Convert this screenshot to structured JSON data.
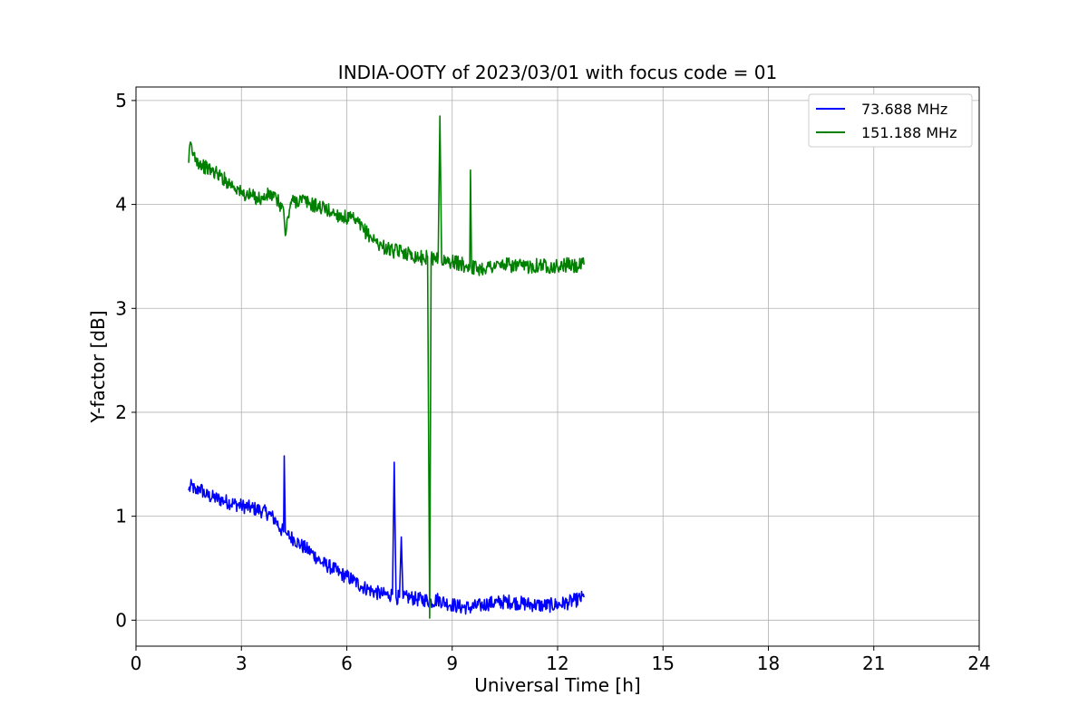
{
  "chart_data": {
    "type": "line",
    "title": "INDIA-OOTY of 2023/03/01 with focus code = 01",
    "xlabel": "Universal Time [h]",
    "ylabel": "Y-factor [dB]",
    "xlim": [
      0,
      24
    ],
    "ylim": [
      -0.25,
      5.13
    ],
    "xticks": [
      0,
      3,
      6,
      9,
      12,
      15,
      18,
      21,
      24
    ],
    "xtick_labels": [
      "0",
      "3",
      "6",
      "9",
      "12",
      "15",
      "18",
      "21",
      "24"
    ],
    "yticks": [
      0,
      1,
      2,
      3,
      4,
      5
    ],
    "ytick_labels": [
      "0",
      "1",
      "2",
      "3",
      "4",
      "5"
    ],
    "grid": true,
    "legend_position": "top-right",
    "series": [
      {
        "name": "73.688 MHz",
        "color": "#0000ff",
        "x": [
          1.5,
          1.6,
          1.7,
          1.8,
          2.0,
          2.2,
          2.5,
          2.8,
          3.0,
          3.3,
          3.6,
          3.8,
          4.0,
          4.1,
          4.2,
          4.22,
          4.25,
          4.3,
          4.5,
          4.7,
          5.0,
          5.3,
          5.6,
          5.8,
          6.0,
          6.2,
          6.4,
          6.6,
          6.8,
          7.0,
          7.2,
          7.3,
          7.35,
          7.4,
          7.5,
          7.55,
          7.6,
          7.8,
          8.0,
          8.2,
          8.4,
          8.6,
          8.8,
          9.0,
          9.2,
          9.5,
          9.8,
          10.0,
          10.3,
          10.6,
          11.0,
          11.3,
          11.6,
          12.0,
          12.3,
          12.5,
          12.75
        ],
        "y": [
          1.25,
          1.3,
          1.22,
          1.28,
          1.2,
          1.18,
          1.15,
          1.12,
          1.1,
          1.08,
          1.05,
          1.02,
          0.95,
          0.88,
          0.85,
          1.58,
          0.85,
          0.82,
          0.78,
          0.72,
          0.65,
          0.55,
          0.5,
          0.45,
          0.42,
          0.38,
          0.33,
          0.3,
          0.27,
          0.25,
          0.24,
          0.25,
          1.52,
          0.22,
          0.22,
          0.8,
          0.21,
          0.22,
          0.2,
          0.2,
          0.18,
          0.2,
          0.17,
          0.15,
          0.13,
          0.12,
          0.14,
          0.16,
          0.17,
          0.18,
          0.16,
          0.15,
          0.14,
          0.15,
          0.17,
          0.19,
          0.22
        ]
      },
      {
        "name": "151.188 MHz",
        "color": "#008000",
        "x": [
          1.5,
          1.55,
          1.6,
          1.7,
          1.8,
          2.0,
          2.3,
          2.6,
          2.9,
          3.0,
          3.3,
          3.6,
          3.8,
          4.0,
          4.2,
          4.25,
          4.4,
          4.7,
          5.0,
          5.3,
          5.6,
          5.9,
          6.2,
          6.5,
          6.8,
          7.0,
          7.3,
          7.6,
          7.8,
          8.0,
          8.2,
          8.3,
          8.36,
          8.4,
          8.6,
          8.65,
          8.7,
          9.0,
          9.3,
          9.5,
          9.52,
          9.55,
          9.8,
          10.0,
          10.5,
          11.0,
          11.5,
          12.0,
          12.3,
          12.5,
          12.75
        ],
        "y": [
          4.4,
          4.6,
          4.5,
          4.45,
          4.4,
          4.35,
          4.3,
          4.22,
          4.15,
          4.1,
          4.08,
          4.05,
          4.1,
          4.05,
          3.95,
          3.7,
          4.02,
          4.05,
          4.0,
          3.97,
          3.92,
          3.88,
          3.85,
          3.75,
          3.65,
          3.6,
          3.55,
          3.55,
          3.52,
          3.5,
          3.48,
          3.5,
          0.02,
          3.48,
          3.5,
          4.85,
          3.45,
          3.45,
          3.42,
          3.4,
          4.33,
          3.4,
          3.38,
          3.4,
          3.42,
          3.4,
          3.42,
          3.4,
          3.42,
          3.4,
          3.42
        ]
      }
    ]
  }
}
